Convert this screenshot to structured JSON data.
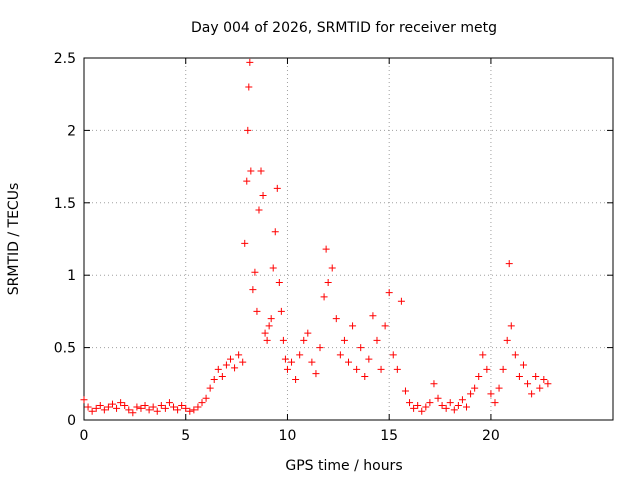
{
  "chart_data": {
    "type": "scatter",
    "title": "Day 004 of 2026, SRMTID for receiver metg",
    "xlabel": "GPS time / hours",
    "ylabel": "SRMTID / TECUs",
    "xlim": [
      0,
      26
    ],
    "ylim": [
      0,
      2.5
    ],
    "x_ticks": [
      0,
      5,
      10,
      15,
      20
    ],
    "x_tick_labels": [
      "0",
      "5",
      "10",
      "15",
      "20"
    ],
    "y_ticks": [
      0,
      0.5,
      1,
      1.5,
      2,
      2.5
    ],
    "y_tick_labels": [
      "0",
      "0.5",
      "1",
      "1.5",
      "2",
      "2.5"
    ],
    "grid": true,
    "marker": "plus",
    "color": "#ff0000",
    "series": [
      {
        "name": "SRMTID",
        "points": [
          [
            0.0,
            0.14
          ],
          [
            0.2,
            0.09
          ],
          [
            0.4,
            0.06
          ],
          [
            0.6,
            0.08
          ],
          [
            0.8,
            0.1
          ],
          [
            1.0,
            0.07
          ],
          [
            1.2,
            0.09
          ],
          [
            1.4,
            0.11
          ],
          [
            1.6,
            0.08
          ],
          [
            1.8,
            0.12
          ],
          [
            2.0,
            0.1
          ],
          [
            2.2,
            0.07
          ],
          [
            2.4,
            0.05
          ],
          [
            2.6,
            0.09
          ],
          [
            2.8,
            0.08
          ],
          [
            3.0,
            0.1
          ],
          [
            3.2,
            0.07
          ],
          [
            3.4,
            0.09
          ],
          [
            3.6,
            0.06
          ],
          [
            3.8,
            0.1
          ],
          [
            4.0,
            0.08
          ],
          [
            4.2,
            0.12
          ],
          [
            4.4,
            0.09
          ],
          [
            4.6,
            0.07
          ],
          [
            4.8,
            0.1
          ],
          [
            5.0,
            0.08
          ],
          [
            5.2,
            0.06
          ],
          [
            5.4,
            0.07
          ],
          [
            5.6,
            0.09
          ],
          [
            5.8,
            0.12
          ],
          [
            6.0,
            0.15
          ],
          [
            6.2,
            0.22
          ],
          [
            6.4,
            0.28
          ],
          [
            6.6,
            0.35
          ],
          [
            6.8,
            0.3
          ],
          [
            7.0,
            0.38
          ],
          [
            7.2,
            0.42
          ],
          [
            7.4,
            0.36
          ],
          [
            7.6,
            0.45
          ],
          [
            7.8,
            0.4
          ],
          [
            7.9,
            1.22
          ],
          [
            8.0,
            1.65
          ],
          [
            8.05,
            2.0
          ],
          [
            8.1,
            2.3
          ],
          [
            8.15,
            2.47
          ],
          [
            8.2,
            1.72
          ],
          [
            8.3,
            0.9
          ],
          [
            8.4,
            1.02
          ],
          [
            8.5,
            0.75
          ],
          [
            8.6,
            1.45
          ],
          [
            8.7,
            1.72
          ],
          [
            8.8,
            1.55
          ],
          [
            8.9,
            0.6
          ],
          [
            9.0,
            0.55
          ],
          [
            9.1,
            0.65
          ],
          [
            9.2,
            0.7
          ],
          [
            9.3,
            1.05
          ],
          [
            9.4,
            1.3
          ],
          [
            9.5,
            1.6
          ],
          [
            9.6,
            0.95
          ],
          [
            9.7,
            0.75
          ],
          [
            9.8,
            0.55
          ],
          [
            9.9,
            0.42
          ],
          [
            10.0,
            0.35
          ],
          [
            10.2,
            0.4
          ],
          [
            10.4,
            0.28
          ],
          [
            10.6,
            0.45
          ],
          [
            10.8,
            0.55
          ],
          [
            11.0,
            0.6
          ],
          [
            11.2,
            0.4
          ],
          [
            11.4,
            0.32
          ],
          [
            11.6,
            0.5
          ],
          [
            11.8,
            0.85
          ],
          [
            11.9,
            1.18
          ],
          [
            12.0,
            0.95
          ],
          [
            12.2,
            1.05
          ],
          [
            12.4,
            0.7
          ],
          [
            12.6,
            0.45
          ],
          [
            12.8,
            0.55
          ],
          [
            13.0,
            0.4
          ],
          [
            13.2,
            0.65
          ],
          [
            13.4,
            0.35
          ],
          [
            13.6,
            0.5
          ],
          [
            13.8,
            0.3
          ],
          [
            14.0,
            0.42
          ],
          [
            14.2,
            0.72
          ],
          [
            14.4,
            0.55
          ],
          [
            14.6,
            0.35
          ],
          [
            14.8,
            0.65
          ],
          [
            15.0,
            0.88
          ],
          [
            15.2,
            0.45
          ],
          [
            15.4,
            0.35
          ],
          [
            15.6,
            0.82
          ],
          [
            15.8,
            0.2
          ],
          [
            16.0,
            0.12
          ],
          [
            16.2,
            0.08
          ],
          [
            16.4,
            0.1
          ],
          [
            16.6,
            0.06
          ],
          [
            16.8,
            0.09
          ],
          [
            17.0,
            0.12
          ],
          [
            17.2,
            0.25
          ],
          [
            17.4,
            0.15
          ],
          [
            17.6,
            0.1
          ],
          [
            17.8,
            0.08
          ],
          [
            18.0,
            0.12
          ],
          [
            18.2,
            0.07
          ],
          [
            18.4,
            0.1
          ],
          [
            18.6,
            0.14
          ],
          [
            18.8,
            0.09
          ],
          [
            19.0,
            0.18
          ],
          [
            19.2,
            0.22
          ],
          [
            19.4,
            0.3
          ],
          [
            19.6,
            0.45
          ],
          [
            19.8,
            0.35
          ],
          [
            20.0,
            0.18
          ],
          [
            20.2,
            0.12
          ],
          [
            20.4,
            0.22
          ],
          [
            20.6,
            0.35
          ],
          [
            20.8,
            0.55
          ],
          [
            20.9,
            1.08
          ],
          [
            21.0,
            0.65
          ],
          [
            21.2,
            0.45
          ],
          [
            21.4,
            0.3
          ],
          [
            21.6,
            0.38
          ],
          [
            21.8,
            0.25
          ],
          [
            22.0,
            0.18
          ],
          [
            22.2,
            0.3
          ],
          [
            22.4,
            0.22
          ],
          [
            22.6,
            0.28
          ],
          [
            22.8,
            0.25
          ]
        ]
      }
    ]
  }
}
